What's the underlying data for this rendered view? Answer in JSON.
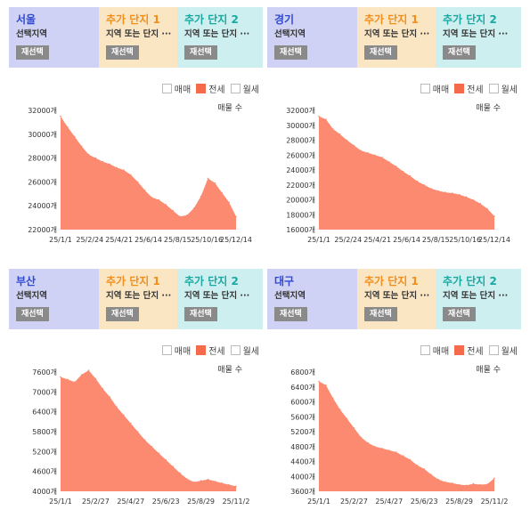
{
  "legend_labels": [
    "매매",
    "전세",
    "월세"
  ],
  "legend_colors": {
    "active": "#f46a4a",
    "area": "#fb8a70",
    "inactive": "#ffffff"
  },
  "header_labels": {
    "add1": "추가 단지 1",
    "add2": "추가 단지 2",
    "select_region": "선택지역",
    "placeholder": "지역 또는 단지 ···",
    "reselect": "재선택"
  },
  "count_label": "매물 수",
  "chart_data": [
    {
      "type": "area",
      "region": "서울",
      "ylim": [
        22000,
        32000
      ],
      "yticks": [
        "32000개",
        "30000개",
        "28000개",
        "26000개",
        "24000개",
        "22000개"
      ],
      "xticks": [
        "25/1/1",
        "25/2/24",
        "25/4/21",
        "25/6/14",
        "25/8/15",
        "25/10/16",
        "25/12/14"
      ],
      "x": [
        0,
        4,
        8,
        12,
        16,
        20,
        24,
        28,
        32,
        36,
        40,
        44,
        48,
        52,
        56,
        60,
        64,
        68,
        72,
        76,
        80,
        84,
        88,
        92,
        96,
        100
      ],
      "values": [
        31500,
        30600,
        29800,
        29000,
        28300,
        28000,
        27700,
        27500,
        27200,
        27000,
        26600,
        26000,
        25300,
        24700,
        24500,
        24100,
        23600,
        23100,
        23200,
        23800,
        24800,
        26300,
        25900,
        25100,
        24300,
        23100
      ]
    },
    {
      "type": "area",
      "region": "경기",
      "ylim": [
        16000,
        32000
      ],
      "yticks": [
        "32000개",
        "30000개",
        "28000개",
        "26000개",
        "24000개",
        "22000개",
        "20000개",
        "18000개",
        "16000개"
      ],
      "xticks": [
        "25/1/1",
        "25/2/24",
        "25/4/21",
        "25/6/14",
        "25/8/15",
        "25/10/16",
        "25/12/14"
      ],
      "x": [
        0,
        4,
        8,
        12,
        16,
        20,
        24,
        28,
        32,
        36,
        40,
        44,
        48,
        52,
        56,
        60,
        64,
        68,
        72,
        76,
        80,
        84,
        88,
        92,
        96,
        100
      ],
      "values": [
        31200,
        30800,
        29500,
        28800,
        28000,
        27300,
        26600,
        26300,
        26000,
        25700,
        25100,
        24500,
        23800,
        23200,
        22500,
        22000,
        21500,
        21200,
        21000,
        20900,
        20700,
        20400,
        20000,
        19500,
        18800,
        17800
      ]
    },
    {
      "type": "area",
      "region": "부산",
      "ylim": [
        4000,
        7600
      ],
      "yticks": [
        "7600개",
        "7000개",
        "6400개",
        "5800개",
        "5200개",
        "4600개",
        "4000개"
      ],
      "xticks": [
        "25/1/1",
        "25/2/27",
        "25/4/27",
        "25/6/23",
        "25/8/29",
        "25/11/2"
      ],
      "x": [
        0,
        4,
        8,
        12,
        16,
        20,
        24,
        28,
        32,
        36,
        40,
        44,
        48,
        52,
        56,
        60,
        64,
        68,
        72,
        76,
        80,
        84,
        88,
        92,
        96,
        100
      ],
      "values": [
        7450,
        7380,
        7300,
        7520,
        7650,
        7400,
        7100,
        6850,
        6550,
        6300,
        6050,
        5800,
        5550,
        5350,
        5150,
        4950,
        4750,
        4550,
        4380,
        4280,
        4320,
        4360,
        4300,
        4250,
        4200,
        4150
      ]
    },
    {
      "type": "area",
      "region": "대구",
      "ylim": [
        3600,
        6800
      ],
      "yticks": [
        "6800개",
        "6400개",
        "6000개",
        "5600개",
        "5200개",
        "4800개",
        "4400개",
        "4000개",
        "3600개"
      ],
      "xticks": [
        "25/1/1",
        "25/2/27",
        "25/4/27",
        "25/6/23",
        "25/8/29",
        "25/11/2"
      ],
      "x": [
        0,
        4,
        8,
        12,
        16,
        20,
        24,
        28,
        32,
        36,
        40,
        44,
        48,
        52,
        56,
        60,
        64,
        68,
        72,
        76,
        80,
        84,
        88,
        92,
        96,
        100
      ],
      "values": [
        6550,
        6450,
        6100,
        5800,
        5550,
        5300,
        5050,
        4900,
        4800,
        4750,
        4700,
        4650,
        4550,
        4450,
        4300,
        4200,
        4050,
        3920,
        3850,
        3820,
        3780,
        3760,
        3800,
        3780,
        3790,
        3950
      ]
    }
  ]
}
